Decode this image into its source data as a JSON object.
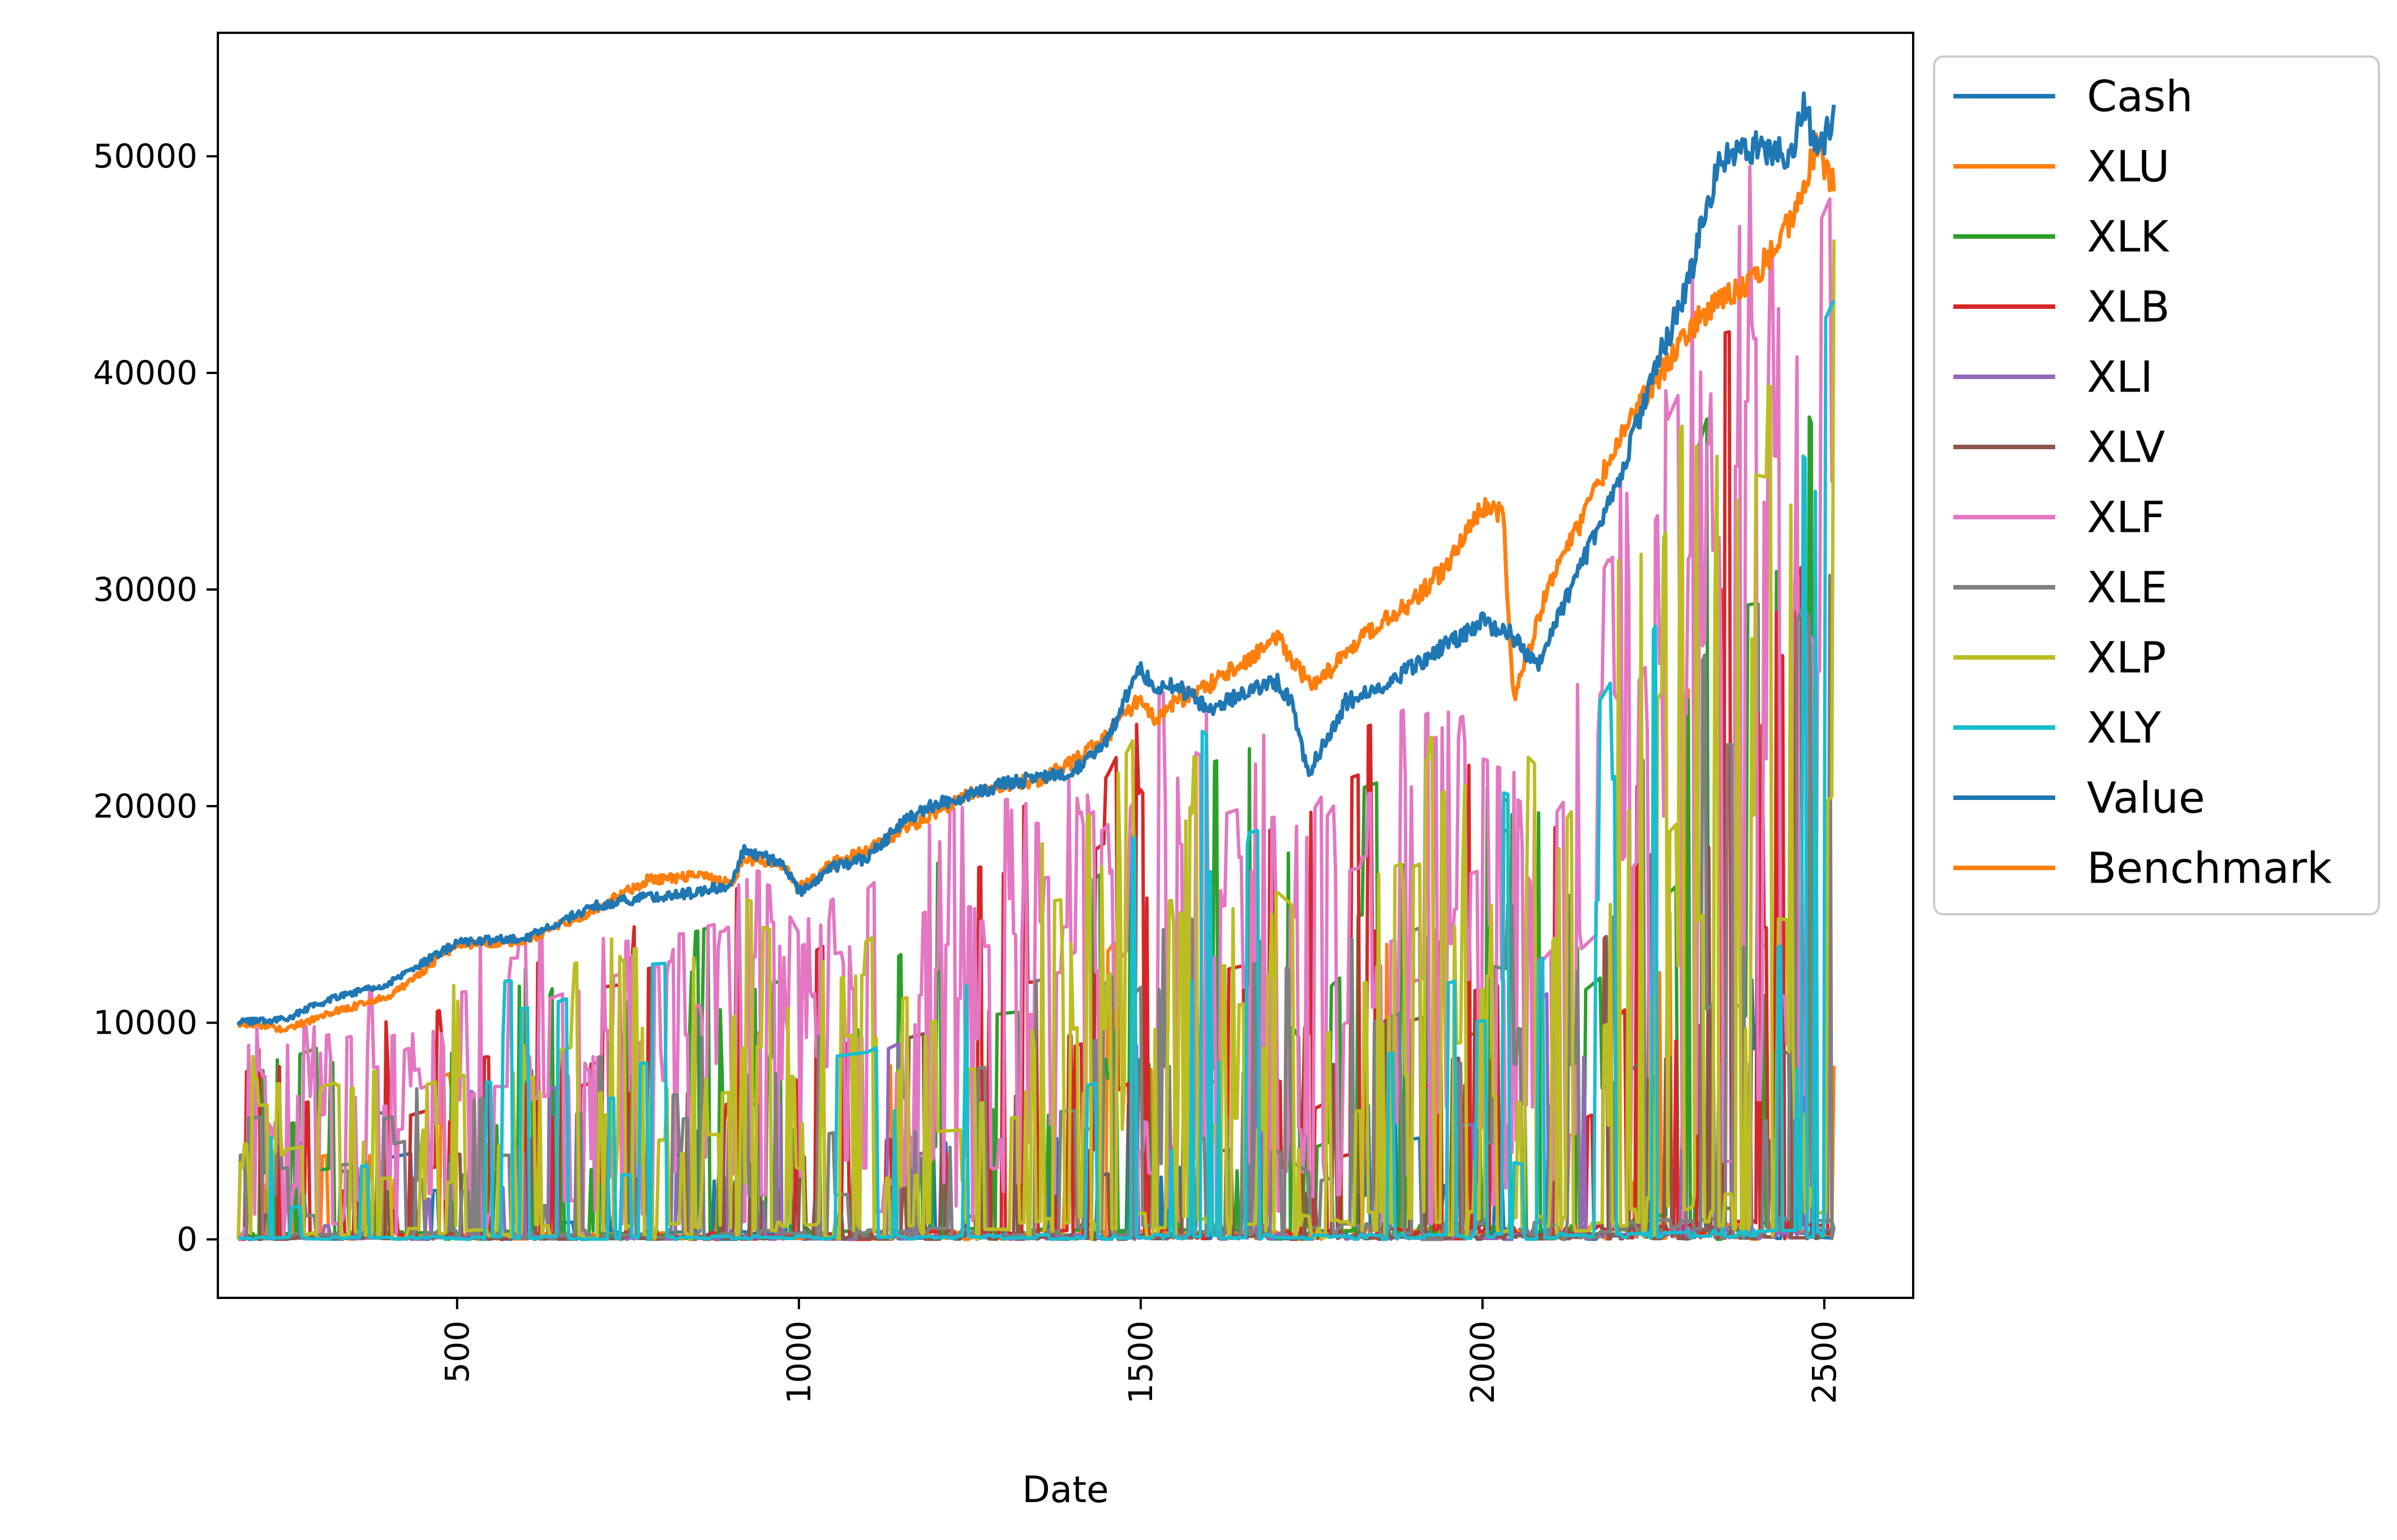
{
  "chart_data": {
    "type": "line",
    "title": "",
    "xlabel": "Date",
    "ylabel": "",
    "xlim": [
      150,
      2630
    ],
    "ylim": [
      -2700,
      55700
    ],
    "x_ticks": [
      500,
      1000,
      1500,
      2000,
      2500
    ],
    "x_tick_labels": [
      "500",
      "1000",
      "1500",
      "2000",
      "2500"
    ],
    "y_ticks": [
      0,
      10000,
      20000,
      30000,
      40000,
      50000
    ],
    "y_tick_labels": [
      "0",
      "10000",
      "20000",
      "30000",
      "40000",
      "50000"
    ],
    "x_tick_rotation": 90,
    "grid": false,
    "legend": {
      "position": "outside-right-top",
      "entries": [
        "Cash",
        "XLU",
        "XLK",
        "XLB",
        "XLI",
        "XLV",
        "XLF",
        "XLE",
        "XLP",
        "XLY",
        "Value",
        "Benchmark"
      ]
    },
    "series": [
      {
        "name": "Benchmark",
        "color": "#ff7f0e",
        "line_kind": "level",
        "x": [
          180,
          250,
          320,
          400,
          500,
          600,
          700,
          780,
          850,
          900,
          920,
          980,
          1000,
          1050,
          1100,
          1150,
          1200,
          1250,
          1300,
          1350,
          1400,
          1450,
          1500,
          1520,
          1550,
          1600,
          1650,
          1700,
          1720,
          1750,
          1800,
          1850,
          1900,
          1950,
          2000,
          2030,
          2045,
          2070,
          2100,
          2150,
          2200,
          2250,
          2300,
          2350,
          2400,
          2450,
          2490,
          2515
        ],
        "y": [
          10000,
          9700,
          10500,
          11200,
          13600,
          13800,
          15200,
          16600,
          16800,
          16400,
          17600,
          17300,
          16200,
          17400,
          18000,
          18800,
          19700,
          20600,
          21000,
          21200,
          22000,
          23200,
          25000,
          24000,
          24800,
          25600,
          26600,
          27800,
          26800,
          25500,
          27000,
          28500,
          29500,
          31200,
          33800,
          33500,
          25000,
          27500,
          30500,
          33500,
          37000,
          39500,
          42000,
          43500,
          44500,
          47000,
          50500,
          48500
        ]
      },
      {
        "name": "Value",
        "color": "#1f77b4",
        "line_kind": "level",
        "x": [
          180,
          250,
          320,
          400,
          500,
          600,
          700,
          780,
          850,
          900,
          920,
          980,
          1000,
          1050,
          1100,
          1150,
          1200,
          1250,
          1300,
          1350,
          1400,
          1450,
          1500,
          1520,
          1550,
          1600,
          1650,
          1700,
          1720,
          1745,
          1800,
          1850,
          1900,
          1950,
          2000,
          2040,
          2080,
          2100,
          2150,
          2200,
          2250,
          2300,
          2330,
          2350,
          2400,
          2450,
          2470,
          2490,
          2515
        ],
        "y": [
          10000,
          10200,
          11200,
          11800,
          13700,
          13900,
          15400,
          15800,
          16000,
          16400,
          18000,
          17300,
          16000,
          17200,
          17600,
          19200,
          20100,
          20500,
          21000,
          21300,
          21600,
          23000,
          26500,
          25200,
          25600,
          24500,
          25200,
          25700,
          24800,
          21500,
          24800,
          25500,
          26500,
          27500,
          28500,
          28000,
          26500,
          28000,
          31500,
          35000,
          40000,
          44000,
          48000,
          50000,
          50500,
          50000,
          52500,
          50000,
          52000
        ]
      },
      {
        "name": "Cash",
        "color": "#1f77b4",
        "line_kind": "allocation",
        "seed": 101,
        "base": 0.02,
        "spike_prob": 0.05,
        "spike_min": 0.05,
        "spike_max": 0.35,
        "cap": 0.95
      },
      {
        "name": "XLU",
        "color": "#ff7f0e",
        "line_kind": "allocation",
        "seed": 202,
        "base": 0.02,
        "spike_prob": 0.05,
        "spike_min": 0.05,
        "spike_max": 0.6,
        "cap": 0.95
      },
      {
        "name": "XLK",
        "color": "#2ca02c",
        "line_kind": "allocation",
        "seed": 303,
        "base": 0.03,
        "spike_prob": 0.12,
        "spike_min": 0.1,
        "spike_max": 0.9,
        "cap": 1.0
      },
      {
        "name": "XLB",
        "color": "#d62728",
        "line_kind": "allocation",
        "seed": 404,
        "base": 0.02,
        "spike_prob": 0.12,
        "spike_min": 0.1,
        "spike_max": 0.95,
        "cap": 1.0
      },
      {
        "name": "XLI",
        "color": "#9467bd",
        "line_kind": "allocation",
        "seed": 505,
        "base": 0.01,
        "spike_prob": 0.04,
        "spike_min": 0.05,
        "spike_max": 0.5,
        "cap": 1.0
      },
      {
        "name": "XLV",
        "color": "#8c564b",
        "line_kind": "allocation",
        "seed": 606,
        "base": 0.01,
        "spike_prob": 0.04,
        "spike_min": 0.05,
        "spike_max": 0.5,
        "cap": 1.0
      },
      {
        "name": "XLF",
        "color": "#e377c2",
        "line_kind": "allocation",
        "seed": 707,
        "base": 0.25,
        "spike_prob": 0.35,
        "spike_min": 0.4,
        "spike_max": 1.0,
        "cap": 1.0
      },
      {
        "name": "XLE",
        "color": "#7f7f7f",
        "line_kind": "allocation",
        "seed": 808,
        "base": 0.03,
        "spike_prob": 0.1,
        "spike_min": 0.1,
        "spike_max": 0.6,
        "cap": 1.0
      },
      {
        "name": "XLP",
        "color": "#bcbd22",
        "line_kind": "allocation",
        "seed": 909,
        "base": 0.05,
        "spike_prob": 0.25,
        "spike_min": 0.1,
        "spike_max": 0.9,
        "cap": 1.0
      },
      {
        "name": "XLY",
        "color": "#17becf",
        "line_kind": "allocation",
        "seed": 1111,
        "base": 0.01,
        "spike_prob": 0.06,
        "spike_min": 0.05,
        "spike_max": 0.95,
        "cap": 1.0
      }
    ]
  }
}
